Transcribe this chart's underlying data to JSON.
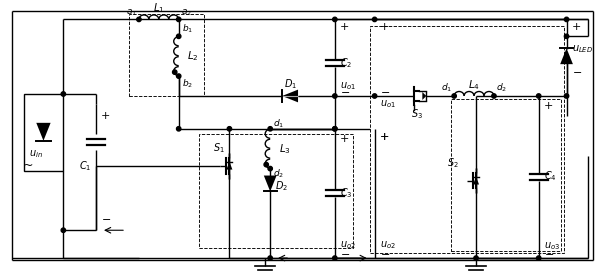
{
  "fig_width": 6.08,
  "fig_height": 2.73,
  "dpi": 100,
  "bg": "#ffffff"
}
